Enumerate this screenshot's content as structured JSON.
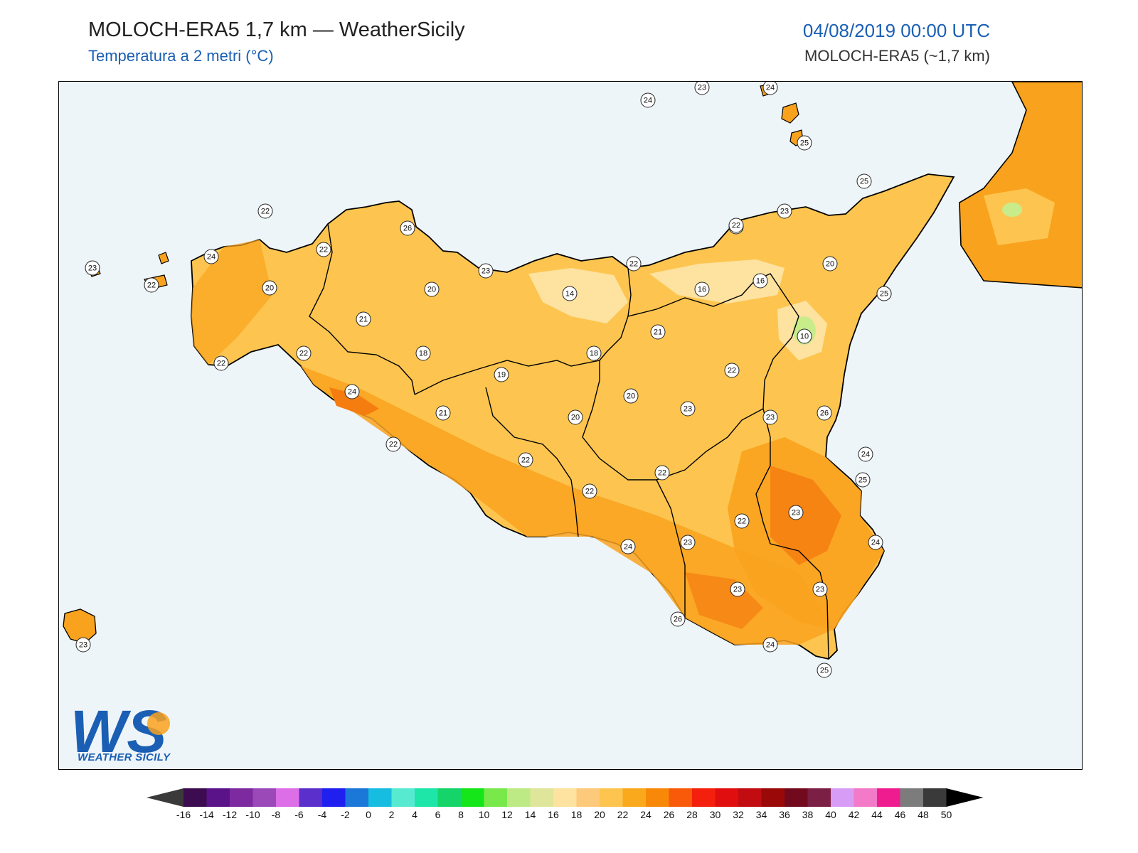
{
  "header": {
    "title": "MOLOCH-ERA5 1,7 km — WeatherSicily",
    "subtitle": "Temperatura a 2 metri (°C)",
    "datetime": "04/08/2019 00:00 UTC",
    "model": "MOLOCH-ERA5 (~1,7 km)"
  },
  "logo": {
    "text": "WEATHER SICILY",
    "letters": "WS"
  },
  "colors": {
    "sea": "#eef5f9",
    "land_base": "#fdc54f",
    "warm": "#f9a21e",
    "hot": "#f57c0f",
    "cool": "#fde2a0",
    "cold_spot": "#c9ec8a",
    "accent": "#1a5fb4"
  },
  "colorbar": {
    "labels": [
      "-16",
      "-14",
      "-12",
      "-10",
      "-8",
      "-6",
      "-4",
      "-2",
      "0",
      "2",
      "4",
      "6",
      "8",
      "10",
      "12",
      "14",
      "16",
      "18",
      "20",
      "22",
      "24",
      "26",
      "28",
      "30",
      "32",
      "34",
      "36",
      "38",
      "40",
      "42",
      "44",
      "46",
      "48",
      "50"
    ],
    "colors": [
      "#3d0b4f",
      "#5a1388",
      "#7d2aa0",
      "#9b49b8",
      "#dc6ee8",
      "#5a2fcc",
      "#1f1ff0",
      "#1b78d8",
      "#17bde0",
      "#57ead0",
      "#1de6a8",
      "#14d46a",
      "#14e61a",
      "#78e84a",
      "#bdea84",
      "#dfe69c",
      "#fde2a0",
      "#fdc97a",
      "#fdc54f",
      "#fba91c",
      "#f88808",
      "#f85a0a",
      "#f41f0d",
      "#e00e0e",
      "#c10d12",
      "#9a0808",
      "#720a1e",
      "#7b1f44",
      "#d79cf5",
      "#f27ac8",
      "#ef1c8f",
      "#7c7c7c",
      "#3a3a3a"
    ]
  },
  "stations": [
    {
      "v": "23"
    },
    {
      "v": "24"
    },
    {
      "v": "23"
    },
    {
      "v": "24"
    },
    {
      "v": "25"
    },
    {
      "v": "25"
    },
    {
      "v": "22"
    },
    {
      "v": "26"
    },
    {
      "v": "22"
    },
    {
      "v": "24"
    },
    {
      "v": "23"
    },
    {
      "v": "22"
    },
    {
      "v": "20"
    },
    {
      "v": "20"
    },
    {
      "v": "23"
    },
    {
      "v": "14"
    },
    {
      "v": "22"
    },
    {
      "v": "23"
    },
    {
      "v": "22"
    },
    {
      "v": "16"
    },
    {
      "v": "16"
    },
    {
      "v": "20"
    },
    {
      "v": "25"
    },
    {
      "v": "21"
    },
    {
      "v": "10"
    },
    {
      "v": "21"
    },
    {
      "v": "22"
    },
    {
      "v": "18"
    },
    {
      "v": "18"
    },
    {
      "v": "22"
    },
    {
      "v": "19"
    },
    {
      "v": "24"
    },
    {
      "v": "25"
    },
    {
      "v": "20"
    },
    {
      "v": "21"
    },
    {
      "v": "20"
    },
    {
      "v": "23"
    },
    {
      "v": "23"
    },
    {
      "v": "26"
    },
    {
      "v": "22"
    },
    {
      "v": "24"
    },
    {
      "v": "25"
    },
    {
      "v": "22"
    },
    {
      "v": "22"
    },
    {
      "v": "22"
    },
    {
      "v": "22"
    },
    {
      "v": "23"
    },
    {
      "v": "24"
    },
    {
      "v": "22"
    },
    {
      "v": "24"
    },
    {
      "v": "23"
    },
    {
      "v": "23"
    },
    {
      "v": "23"
    },
    {
      "v": "26"
    },
    {
      "v": "24"
    },
    {
      "v": "25"
    },
    {
      "v": "23"
    }
  ]
}
